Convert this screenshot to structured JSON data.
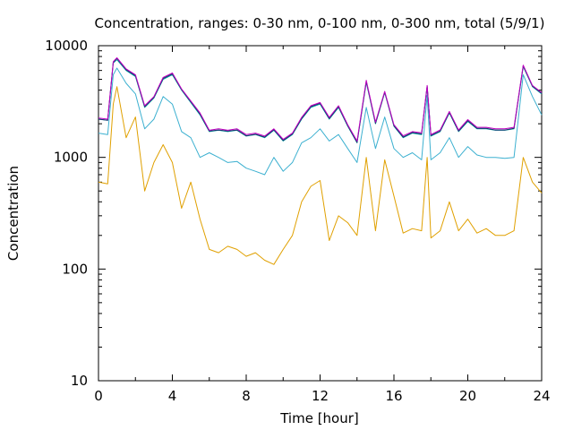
{
  "chart_data": {
    "type": "line",
    "title": "Concentration, ranges: 0-30 nm, 0-100 nm, 0-300 nm, total (5/9/1)",
    "xlabel": "Time [hour]",
    "ylabel": "Concentration",
    "xlim": [
      0,
      24
    ],
    "ylim": [
      10,
      10000
    ],
    "yscale": "log",
    "xticks": [
      "0",
      "4",
      "8",
      "12",
      "16",
      "20",
      "24"
    ],
    "yticks": [
      "10",
      "100",
      "1000",
      "10000"
    ],
    "grid": false,
    "legend": "none",
    "x": [
      0,
      0.5,
      0.8,
      1,
      1.5,
      2,
      2.5,
      3,
      3.5,
      4,
      4.5,
      5,
      5.5,
      6,
      6.5,
      7,
      7.5,
      8,
      8.5,
      9,
      9.5,
      10,
      10.5,
      11,
      11.5,
      12,
      12.5,
      13,
      13.5,
      14,
      14.5,
      15,
      15.5,
      16,
      16.5,
      17,
      17.5,
      17.8,
      18,
      18.5,
      19,
      19.5,
      20,
      20.5,
      21,
      21.5,
      22,
      22.5,
      23,
      23.5,
      24
    ],
    "series": [
      {
        "color": "#e0a000",
        "values": [
          600,
          580,
          3000,
          4300,
          1500,
          2300,
          500,
          900,
          1300,
          900,
          350,
          600,
          280,
          150,
          140,
          160,
          150,
          130,
          140,
          120,
          110,
          150,
          200,
          400,
          550,
          620,
          180,
          300,
          260,
          200,
          1000,
          220,
          950,
          450,
          210,
          230,
          220,
          1000,
          190,
          220,
          400,
          220,
          280,
          210,
          230,
          200,
          200,
          220,
          1000,
          600,
          480
        ]
      },
      {
        "color": "#3cb0d0",
        "values": [
          1650,
          1600,
          5500,
          6300,
          4600,
          3700,
          1800,
          2200,
          3500,
          3000,
          1700,
          1500,
          1000,
          1100,
          1000,
          900,
          920,
          800,
          750,
          700,
          1000,
          750,
          900,
          1350,
          1500,
          1800,
          1400,
          1600,
          1200,
          900,
          2800,
          1200,
          2300,
          1200,
          1000,
          1100,
          950,
          3600,
          950,
          1100,
          1500,
          1000,
          1250,
          1050,
          1000,
          1000,
          980,
          1000,
          5500,
          3500,
          2400
        ]
      },
      {
        "color": "#00a0a0",
        "values": [
          2200,
          2150,
          7000,
          7500,
          6000,
          5300,
          2800,
          3400,
          5000,
          5500,
          4000,
          3100,
          2400,
          1700,
          1750,
          1700,
          1750,
          1550,
          1600,
          1500,
          1750,
          1400,
          1600,
          2200,
          2800,
          3000,
          2200,
          2800,
          1900,
          1350,
          4700,
          2000,
          3800,
          1900,
          1500,
          1650,
          1600,
          4300,
          1550,
          1700,
          2500,
          1700,
          2100,
          1800,
          1800,
          1750,
          1750,
          1800,
          6500,
          4300,
          3700
        ]
      },
      {
        "color": "#1a2f6e",
        "values": [
          2200,
          2150,
          7100,
          7700,
          6100,
          5400,
          2850,
          3450,
          5100,
          5600,
          4050,
          3150,
          2450,
          1720,
          1760,
          1720,
          1760,
          1560,
          1610,
          1520,
          1770,
          1420,
          1620,
          2230,
          2850,
          3050,
          2230,
          2850,
          1920,
          1360,
          4800,
          2020,
          3850,
          1920,
          1520,
          1670,
          1620,
          4350,
          1570,
          1720,
          2530,
          1720,
          2130,
          1820,
          1820,
          1760,
          1760,
          1820,
          6600,
          4350,
          3750
        ]
      },
      {
        "color": "#c000c0",
        "values": [
          2250,
          2200,
          7200,
          7800,
          6200,
          5500,
          2900,
          3500,
          5200,
          5700,
          4100,
          3200,
          2500,
          1750,
          1800,
          1750,
          1800,
          1600,
          1650,
          1550,
          1800,
          1450,
          1650,
          2280,
          2900,
          3100,
          2280,
          2900,
          1960,
          1400,
          4900,
          2070,
          3900,
          1960,
          1560,
          1700,
          1660,
          4400,
          1600,
          1760,
          2580,
          1760,
          2180,
          1860,
          1860,
          1800,
          1800,
          1860,
          6700,
          4400,
          3800
        ]
      }
    ]
  }
}
